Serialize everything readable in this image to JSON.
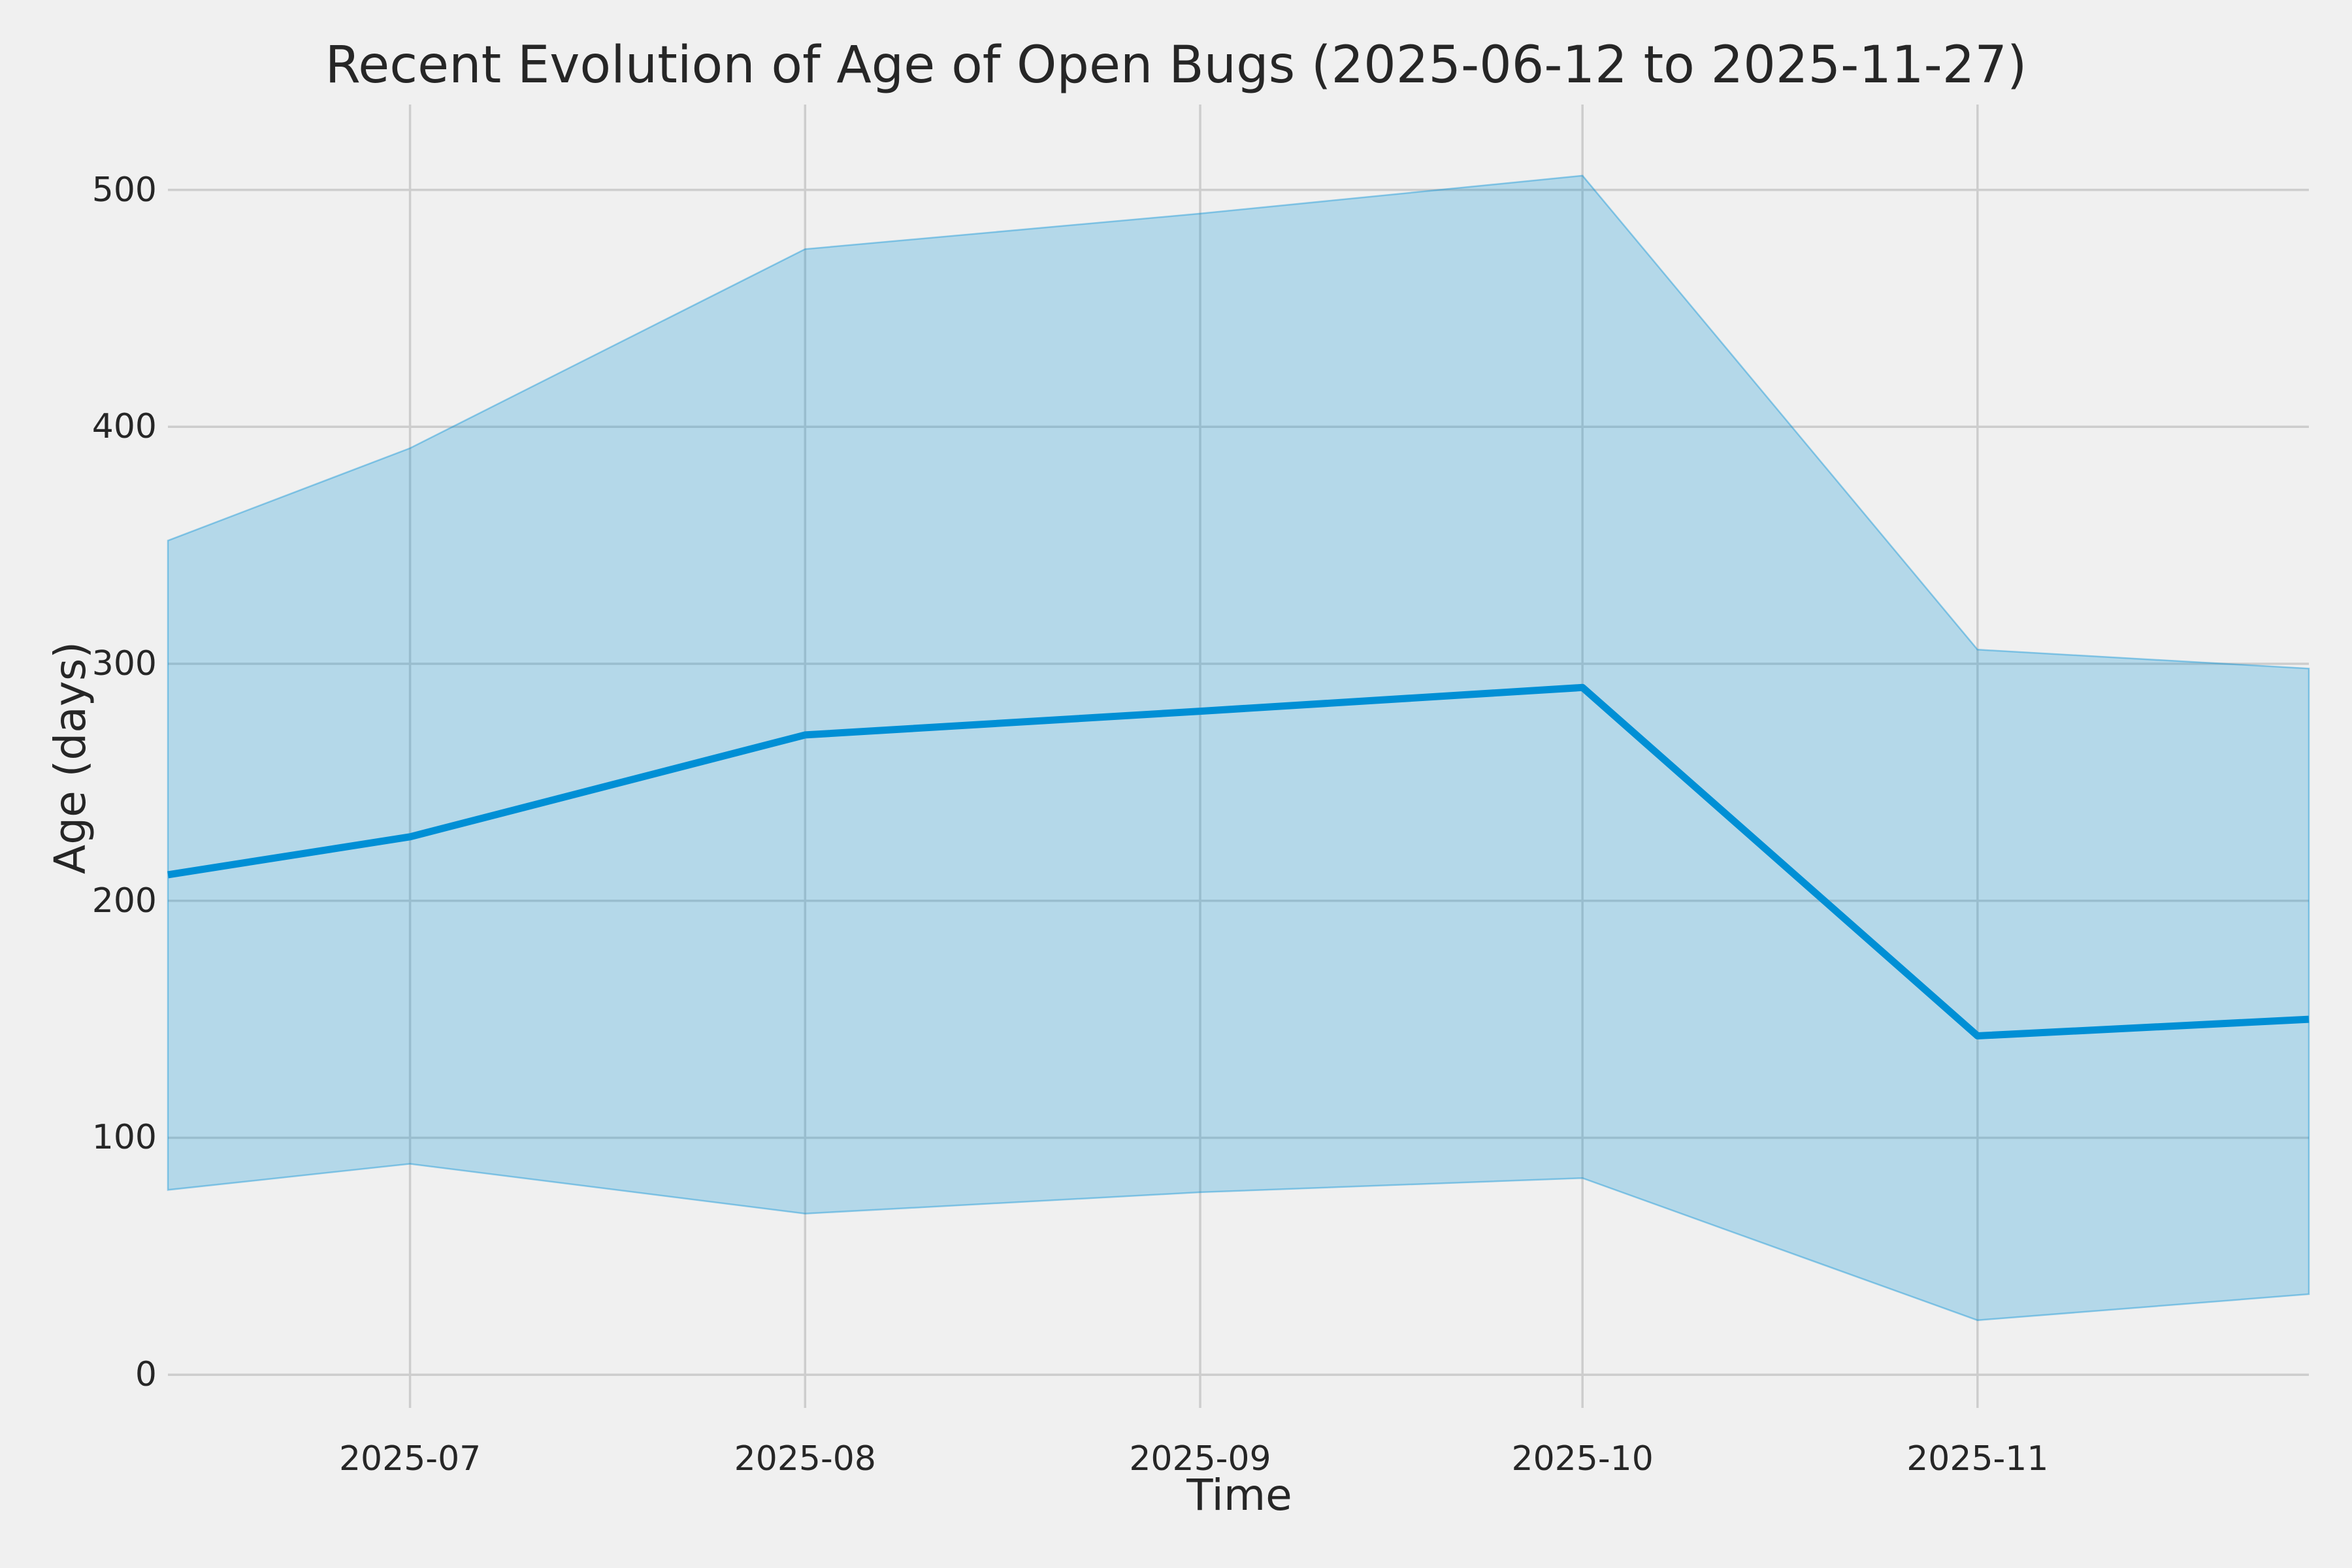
{
  "chart_data": {
    "type": "line",
    "title": "Recent Evolution of Age of Open Bugs (2025-06-12 to 2025-11-27)",
    "xlabel": "Time",
    "ylabel": "Age (days)",
    "x": [
      "2025-06-12",
      "2025-07-01",
      "2025-08-01",
      "2025-09-01",
      "2025-10-01",
      "2025-11-01",
      "2025-11-27"
    ],
    "series": [
      {
        "name": "mean-age-line",
        "style": "line",
        "values": [
          211,
          227,
          270,
          280,
          290,
          143,
          150
        ]
      },
      {
        "name": "band-upper",
        "style": "band-upper",
        "values": [
          352,
          391,
          475,
          490,
          506,
          306,
          298
        ]
      },
      {
        "name": "band-lower",
        "style": "band-lower",
        "values": [
          78,
          89,
          68,
          77,
          83,
          23,
          34
        ]
      }
    ],
    "xticks": [
      {
        "label": "2025-07",
        "date": "2025-07-01"
      },
      {
        "label": "2025-08",
        "date": "2025-08-01"
      },
      {
        "label": "2025-09",
        "date": "2025-09-01"
      },
      {
        "label": "2025-10",
        "date": "2025-10-01"
      },
      {
        "label": "2025-11",
        "date": "2025-11-01"
      }
    ],
    "yticks": [
      "0",
      "100",
      "200",
      "300",
      "400",
      "500"
    ],
    "ylim": [
      -14,
      536
    ],
    "grid": true,
    "legend": false,
    "colors": {
      "background": "#f0f0f0",
      "grid": "#cdcdcd",
      "line": "#008fd5",
      "band": "#008fd5",
      "band_opacity": "0.25",
      "text": "#262626"
    }
  }
}
